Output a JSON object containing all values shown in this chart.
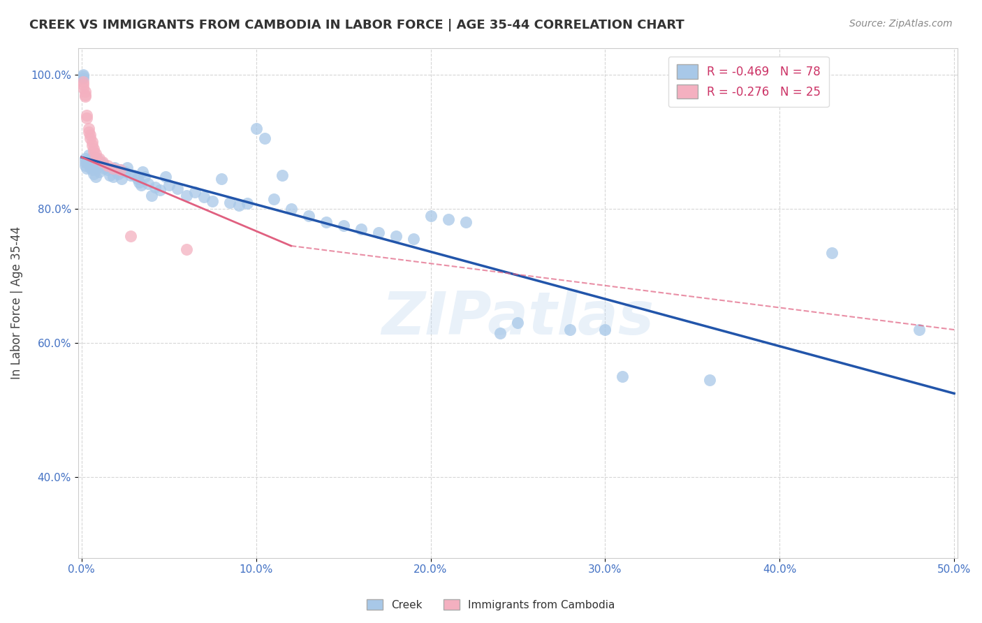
{
  "title": "CREEK VS IMMIGRANTS FROM CAMBODIA IN LABOR FORCE | AGE 35-44 CORRELATION CHART",
  "source": "Source: ZipAtlas.com",
  "ylabel": "In Labor Force | Age 35-44",
  "x_min": -0.002,
  "x_max": 0.502,
  "y_min": 0.28,
  "y_max": 1.04,
  "x_ticks": [
    0.0,
    0.1,
    0.2,
    0.3,
    0.4,
    0.5
  ],
  "x_tick_labels": [
    "0.0%",
    "10.0%",
    "20.0%",
    "30.0%",
    "40.0%",
    "50.0%"
  ],
  "y_ticks": [
    0.4,
    0.6,
    0.8,
    1.0
  ],
  "y_tick_labels": [
    "40.0%",
    "60.0%",
    "80.0%",
    "100.0%"
  ],
  "legend_labels": [
    "Creek",
    "Immigrants from Cambodia"
  ],
  "creek_color": "#a8c8e8",
  "cambodia_color": "#f4b0c0",
  "creek_line_color": "#2255aa",
  "cambodia_line_color": "#e06080",
  "background_color": "#ffffff",
  "grid_color": "#cccccc",
  "watermark": "ZIPatlas",
  "creek_scatter": [
    [
      0.001,
      1.0
    ],
    [
      0.001,
      0.995
    ],
    [
      0.001,
      0.998
    ],
    [
      0.002,
      0.875
    ],
    [
      0.002,
      0.87
    ],
    [
      0.002,
      0.865
    ],
    [
      0.003,
      0.87
    ],
    [
      0.003,
      0.86
    ],
    [
      0.004,
      0.88
    ],
    [
      0.004,
      0.868
    ],
    [
      0.005,
      0.875
    ],
    [
      0.005,
      0.862
    ],
    [
      0.006,
      0.87
    ],
    [
      0.006,
      0.858
    ],
    [
      0.007,
      0.878
    ],
    [
      0.007,
      0.852
    ],
    [
      0.008,
      0.865
    ],
    [
      0.008,
      0.848
    ],
    [
      0.009,
      0.875
    ],
    [
      0.009,
      0.862
    ],
    [
      0.01,
      0.87
    ],
    [
      0.01,
      0.855
    ],
    [
      0.012,
      0.868
    ],
    [
      0.013,
      0.86
    ],
    [
      0.015,
      0.858
    ],
    [
      0.016,
      0.85
    ],
    [
      0.018,
      0.848
    ],
    [
      0.019,
      0.862
    ],
    [
      0.02,
      0.855
    ],
    [
      0.021,
      0.852
    ],
    [
      0.022,
      0.858
    ],
    [
      0.023,
      0.845
    ],
    [
      0.025,
      0.855
    ],
    [
      0.026,
      0.862
    ],
    [
      0.028,
      0.85
    ],
    [
      0.03,
      0.85
    ],
    [
      0.032,
      0.845
    ],
    [
      0.033,
      0.84
    ],
    [
      0.034,
      0.835
    ],
    [
      0.035,
      0.855
    ],
    [
      0.036,
      0.848
    ],
    [
      0.038,
      0.838
    ],
    [
      0.04,
      0.82
    ],
    [
      0.042,
      0.832
    ],
    [
      0.045,
      0.828
    ],
    [
      0.048,
      0.848
    ],
    [
      0.05,
      0.835
    ],
    [
      0.055,
      0.83
    ],
    [
      0.06,
      0.82
    ],
    [
      0.065,
      0.825
    ],
    [
      0.07,
      0.818
    ],
    [
      0.075,
      0.812
    ],
    [
      0.08,
      0.845
    ],
    [
      0.085,
      0.81
    ],
    [
      0.09,
      0.805
    ],
    [
      0.095,
      0.808
    ],
    [
      0.1,
      0.92
    ],
    [
      0.105,
      0.905
    ],
    [
      0.11,
      0.815
    ],
    [
      0.115,
      0.85
    ],
    [
      0.12,
      0.8
    ],
    [
      0.13,
      0.79
    ],
    [
      0.14,
      0.78
    ],
    [
      0.15,
      0.775
    ],
    [
      0.16,
      0.77
    ],
    [
      0.17,
      0.765
    ],
    [
      0.18,
      0.76
    ],
    [
      0.19,
      0.755
    ],
    [
      0.2,
      0.79
    ],
    [
      0.21,
      0.785
    ],
    [
      0.22,
      0.78
    ],
    [
      0.24,
      0.615
    ],
    [
      0.25,
      0.63
    ],
    [
      0.28,
      0.62
    ],
    [
      0.3,
      0.62
    ],
    [
      0.31,
      0.55
    ],
    [
      0.36,
      0.545
    ],
    [
      0.43,
      0.735
    ],
    [
      0.48,
      0.62
    ]
  ],
  "cambodia_scatter": [
    [
      0.001,
      0.99
    ],
    [
      0.001,
      0.985
    ],
    [
      0.001,
      0.98
    ],
    [
      0.002,
      0.975
    ],
    [
      0.002,
      0.97
    ],
    [
      0.002,
      0.968
    ],
    [
      0.003,
      0.94
    ],
    [
      0.003,
      0.935
    ],
    [
      0.004,
      0.92
    ],
    [
      0.004,
      0.915
    ],
    [
      0.005,
      0.91
    ],
    [
      0.005,
      0.905
    ],
    [
      0.006,
      0.9
    ],
    [
      0.006,
      0.895
    ],
    [
      0.007,
      0.89
    ],
    [
      0.007,
      0.885
    ],
    [
      0.008,
      0.882
    ],
    [
      0.008,
      0.875
    ],
    [
      0.01,
      0.875
    ],
    [
      0.012,
      0.87
    ],
    [
      0.015,
      0.865
    ],
    [
      0.018,
      0.86
    ],
    [
      0.022,
      0.858
    ],
    [
      0.028,
      0.76
    ],
    [
      0.06,
      0.74
    ]
  ],
  "creek_line": {
    "x0": 0.0,
    "x1": 0.5,
    "y0": 0.877,
    "y1": 0.525
  },
  "cambodia_line_solid": {
    "x0": 0.0,
    "x1": 0.12,
    "y0": 0.877,
    "y1": 0.745
  },
  "cambodia_line_dashed": {
    "x0": 0.12,
    "x1": 0.5,
    "y0": 0.745,
    "y1": 0.62
  }
}
